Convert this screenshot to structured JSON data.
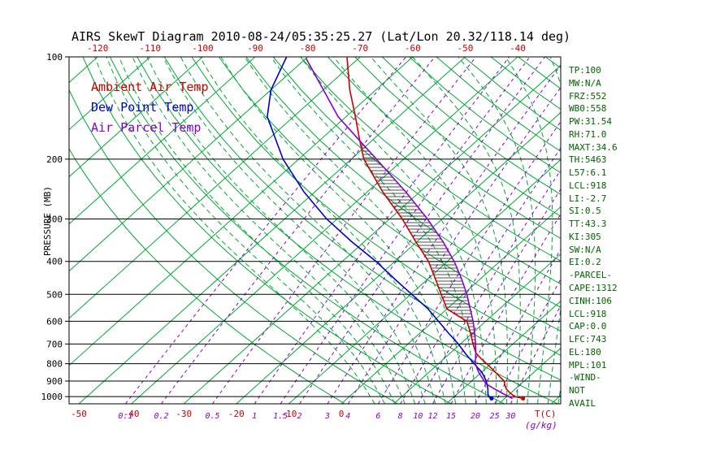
{
  "title": "AIRS SkewT Diagram 2010-08-24/05:35:25.27 (Lat/Lon 20.32/118.14 deg)",
  "colors": {
    "temp_line": "#cc0000",
    "dewpoint_line": "#0000c8",
    "parcel_line": "#8800cc",
    "grid_green": "#00a833",
    "pressure_grid": "#000000",
    "stats_text": "#006400",
    "mixing_ratio": "#8800cc",
    "axis_temp_labels": "#cc0000",
    "hatch": "#222222"
  },
  "legend": {
    "items": [
      {
        "label": "Ambient Air Temp",
        "color": "#cc0000"
      },
      {
        "label": "Dew Point Temp",
        "color": "#0000c8"
      },
      {
        "label": "Air Parcel Temp",
        "color": "#8800cc"
      }
    ]
  },
  "axes": {
    "pressure_axis_label": "PRESSURE (MB)",
    "pressure_ticks_mb": [
      100,
      200,
      300,
      400,
      500,
      600,
      700,
      800,
      900,
      1000
    ],
    "top_temperature_ticks_c": [
      -120,
      -110,
      -100,
      -90,
      -80,
      -70,
      -60,
      -50,
      -40
    ],
    "bottom_temperature_ticks_c": [
      -50,
      -40,
      -30,
      -20,
      -10,
      0
    ],
    "temperature_unit_label": "T(C)",
    "mixing_ratio_unit_label": "(g/kg)"
  },
  "stats_panel": {
    "lines": [
      "TP:100",
      "MW:N/A",
      "FRZ:552",
      "WB0:558",
      "PW:31.54",
      "RH:71.0",
      "MAXT:34.6",
      "TH:5463",
      "L57:6.1",
      "LCL:918",
      "LI:-2.7",
      "SI:0.5",
      "TT:43.3",
      "KI:305",
      "SW:N/A",
      "EI:0.2",
      "-PARCEL-",
      "CAPE:1312",
      "CINH:106",
      "LCL:918",
      "CAP:0.0",
      "LFC:743",
      "EL:180",
      "MPL:101",
      "-WIND-",
      "NOT",
      "AVAIL"
    ]
  },
  "chart_data": {
    "type": "line",
    "title": "AIRS SkewT Diagram 2010-08-24/05:35:25.27 (Lat/Lon 20.32/118.14 deg)",
    "x_axis": {
      "label": "T(C)",
      "surface_range_c": [
        -50,
        40
      ],
      "skewed": true
    },
    "y_axis": {
      "label": "PRESSURE (MB)",
      "scale": "log",
      "range_mb": [
        100,
        1050
      ],
      "ticks": [
        100,
        200,
        300,
        400,
        500,
        600,
        700,
        800,
        900,
        1000
      ]
    },
    "grid": {
      "isotherms_c": {
        "min": -140,
        "max": 40,
        "step": 10,
        "style": "solid-green"
      },
      "dry_adiabats_theta_k": {
        "min": 270,
        "max": 480,
        "step": 10,
        "style": "solid-green"
      },
      "moist_adiabats_thetaw_c": {
        "min": 4,
        "max": 40,
        "step": 2,
        "style": "dashed-green"
      },
      "mixing_ratio_g_per_kg": [
        0.1,
        0.2,
        0.5,
        1,
        1.5,
        2,
        3,
        4,
        6,
        8,
        10,
        12,
        15,
        20,
        25,
        30
      ]
    },
    "series": [
      {
        "name": "Ambient Air Temp",
        "color": "#cc0000",
        "points_p_t": [
          [
            1013,
            33.5
          ],
          [
            1000,
            31.5
          ],
          [
            975,
            29.8
          ],
          [
            950,
            28.3
          ],
          [
            925,
            27.2
          ],
          [
            900,
            26.2
          ],
          [
            850,
            22.8
          ],
          [
            800,
            19.2
          ],
          [
            775,
            17.2
          ],
          [
            750,
            15.3
          ],
          [
            743,
            14.8
          ],
          [
            700,
            12.4
          ],
          [
            650,
            9.6
          ],
          [
            600,
            6.4
          ],
          [
            552,
            0.0
          ],
          [
            500,
            -4.2
          ],
          [
            450,
            -8.6
          ],
          [
            400,
            -13.6
          ],
          [
            350,
            -20.2
          ],
          [
            300,
            -27.6
          ],
          [
            250,
            -37.0
          ],
          [
            200,
            -47.6
          ],
          [
            175,
            -52.6
          ],
          [
            150,
            -58.2
          ],
          [
            125,
            -65.0
          ],
          [
            100,
            -72.5
          ]
        ]
      },
      {
        "name": "Dew Point Temp",
        "color": "#0000c8",
        "points_p_t": [
          [
            1013,
            27.5
          ],
          [
            1000,
            26.5
          ],
          [
            975,
            25.6
          ],
          [
            950,
            24.8
          ],
          [
            925,
            23.8
          ],
          [
            900,
            22.8
          ],
          [
            850,
            20.2
          ],
          [
            800,
            16.8
          ],
          [
            750,
            13.2
          ],
          [
            700,
            9.6
          ],
          [
            650,
            5.4
          ],
          [
            600,
            1.0
          ],
          [
            552,
            -3.6
          ],
          [
            500,
            -9.8
          ],
          [
            450,
            -16.4
          ],
          [
            400,
            -23.6
          ],
          [
            350,
            -32.4
          ],
          [
            300,
            -42.0
          ],
          [
            250,
            -52.0
          ],
          [
            200,
            -63.0
          ],
          [
            150,
            -75.0
          ],
          [
            125,
            -80.0
          ],
          [
            100,
            -84.0
          ]
        ]
      },
      {
        "name": "Air Parcel Temp",
        "color": "#8800cc",
        "points_p_t": [
          [
            1013,
            31.5
          ],
          [
            975,
            28.2
          ],
          [
            950,
            26.1
          ],
          [
            918,
            23.4
          ],
          [
            900,
            22.4
          ],
          [
            850,
            19.6
          ],
          [
            800,
            17.0
          ],
          [
            743,
            14.8
          ],
          [
            700,
            12.9
          ],
          [
            650,
            10.4
          ],
          [
            600,
            7.6
          ],
          [
            550,
            4.3
          ],
          [
            500,
            0.7
          ],
          [
            450,
            -3.6
          ],
          [
            400,
            -8.7
          ],
          [
            350,
            -15.0
          ],
          [
            300,
            -22.8
          ],
          [
            250,
            -32.6
          ],
          [
            200,
            -45.2
          ],
          [
            180,
            -51.2
          ],
          [
            150,
            -61.5
          ],
          [
            101,
            -80.0
          ]
        ]
      }
    ],
    "indices": {
      "TP": 100,
      "MW": "N/A",
      "FRZ": 552,
      "WB0": 558,
      "PW": 31.54,
      "RH": 71.0,
      "MAXT": 34.6,
      "TH": 5463,
      "L57": 6.1,
      "LCL": 918,
      "LI": -2.7,
      "SI": 0.5,
      "TT": 43.3,
      "KI": 305,
      "SW": "N/A",
      "EI": 0.2,
      "CAPE": 1312,
      "CINH": 106,
      "CAP": 0.0,
      "LFC": 743,
      "EL": 180,
      "MPL": 101
    },
    "cape_hatch": {
      "from_p": 743,
      "to_p": 180
    }
  }
}
